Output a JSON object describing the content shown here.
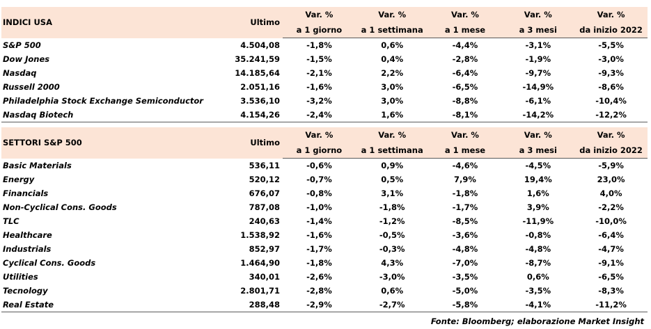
{
  "sections": [
    {
      "title": "INDICI USA",
      "ultimo": "Ultimo",
      "columns": [
        [
          "Var. %",
          "a 1 giorno"
        ],
        [
          "Var. %",
          "a 1 settimana"
        ],
        [
          "Var. %",
          "a 1 mese"
        ],
        [
          "Var. %",
          "a 3 mesi"
        ],
        [
          "Var. %",
          "da inizio 2022"
        ]
      ],
      "rows": [
        [
          "S&P 500",
          "4.504,08",
          "-1,8%",
          "0,6%",
          "-4,4%",
          "-3,1%",
          "-5,5%"
        ],
        [
          "Dow Jones",
          "35.241,59",
          "-1,5%",
          "0,4%",
          "-2,8%",
          "-1,9%",
          "-3,0%"
        ],
        [
          "Nasdaq",
          "14.185,64",
          "-2,1%",
          "2,2%",
          "-6,4%",
          "-9,7%",
          "-9,3%"
        ],
        [
          "Russell 2000",
          "2.051,16",
          "-1,6%",
          "3,0%",
          "-6,5%",
          "-14,9%",
          "-8,6%"
        ],
        [
          "Philadelphia Stock Exchange Semiconductor",
          "3.536,10",
          "-3,2%",
          "3,0%",
          "-8,8%",
          "-6,1%",
          "-10,4%"
        ],
        [
          "Nasdaq Biotech",
          "4.154,26",
          "-2,4%",
          "1,6%",
          "-8,1%",
          "-14,2%",
          "-12,2%"
        ]
      ]
    },
    {
      "title": "SETTORI S&P 500",
      "ultimo": "Ultimo",
      "columns": [
        [
          "Var. %",
          "a 1 giorno"
        ],
        [
          "Var. %",
          "a 1 settimana"
        ],
        [
          "Var. %",
          "a 1 mese"
        ],
        [
          "Var. %",
          "a 3 mesi"
        ],
        [
          "Var. %",
          "da inizio 2022"
        ]
      ],
      "rows": [
        [
          "Basic Materials",
          "536,11",
          "-0,6%",
          "0,9%",
          "-4,6%",
          "-4,5%",
          "-5,9%"
        ],
        [
          "Energy",
          "520,12",
          "-0,7%",
          "0,5%",
          "7,9%",
          "19,4%",
          "23,0%"
        ],
        [
          "Financials",
          "676,07",
          "-0,8%",
          "3,1%",
          "-1,8%",
          "1,6%",
          "4,0%"
        ],
        [
          "Non-Cyclical Cons. Goods",
          "787,08",
          "-1,0%",
          "-1,8%",
          "-1,7%",
          "3,9%",
          "-2,2%"
        ],
        [
          "TLC",
          "240,63",
          "-1,4%",
          "-1,2%",
          "-8,5%",
          "-11,9%",
          "-10,0%"
        ],
        [
          "Healthcare",
          "1.538,92",
          "-1,6%",
          "-0,5%",
          "-3,6%",
          "-0,8%",
          "-6,4%"
        ],
        [
          "Industrials",
          "852,97",
          "-1,7%",
          "-0,3%",
          "-4,8%",
          "-4,8%",
          "-4,7%"
        ],
        [
          "Cyclical Cons. Goods",
          "1.464,90",
          "-1,8%",
          "4,3%",
          "-7,0%",
          "-8,7%",
          "-9,1%"
        ],
        [
          "Utilities",
          "340,01",
          "-2,6%",
          "-3,0%",
          "-3,5%",
          "0,6%",
          "-6,5%"
        ],
        [
          "Tecnology",
          "2.801,71",
          "-2,8%",
          "0,6%",
          "-5,0%",
          "-3,5%",
          "-8,3%"
        ],
        [
          "Real Estate",
          "288,48",
          "-2,9%",
          "-2,7%",
          "-5,8%",
          "-4,1%",
          "-11,2%"
        ]
      ]
    }
  ],
  "footer": "Fonte: Bloomberg; elaborazione Market Insight"
}
